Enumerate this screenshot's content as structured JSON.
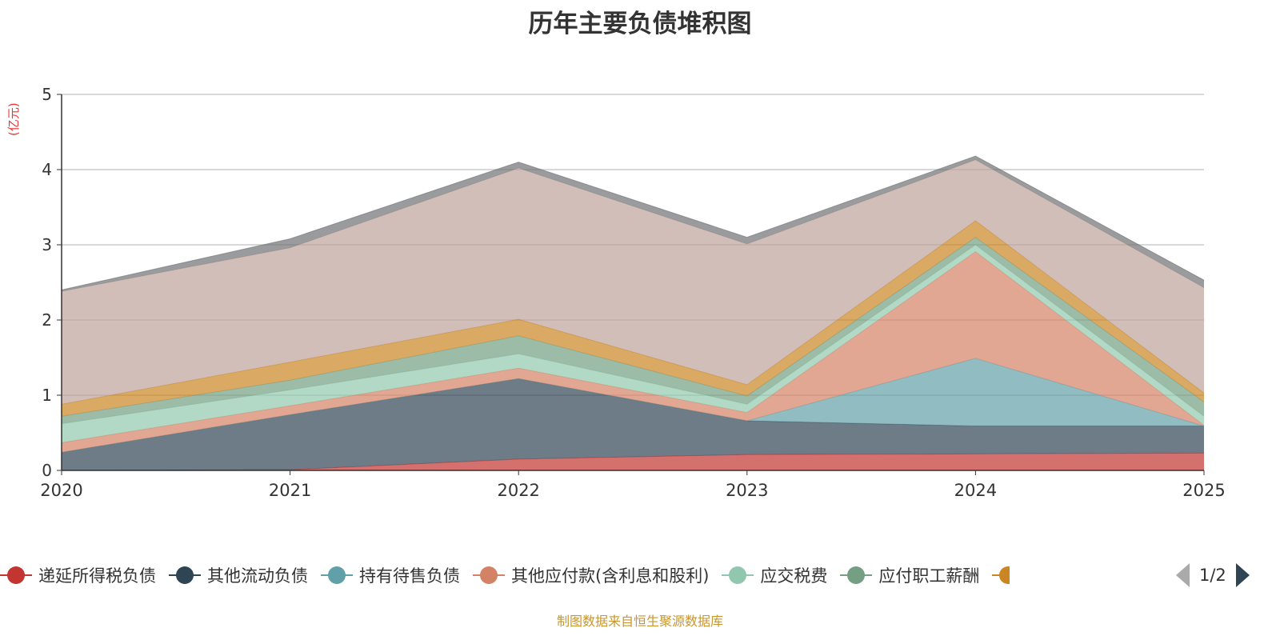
{
  "chart_data": {
    "type": "area",
    "stacked": true,
    "title": "历年主要负债堆积图",
    "ylabel": "(亿元)",
    "xlabel": "",
    "ylim": [
      0,
      5
    ],
    "yticks": [
      "0",
      "1",
      "2",
      "3",
      "4",
      "5"
    ],
    "categories": [
      "2020",
      "2021",
      "2022",
      "2023",
      "2024",
      "2025"
    ],
    "grid": true,
    "legend_position": "bottom",
    "legend_page": "1/2",
    "series": [
      {
        "name": "递延所得税负债",
        "color": "#c23531",
        "values": [
          0.0,
          0.01,
          0.15,
          0.21,
          0.22,
          0.23
        ]
      },
      {
        "name": "其他流动负债",
        "color": "#2f4554",
        "values": [
          0.24,
          0.73,
          1.07,
          0.45,
          0.37,
          0.36
        ]
      },
      {
        "name": "持有待售负债",
        "color": "#61a0a8",
        "values": [
          0,
          0,
          0,
          0,
          0.9,
          0
        ]
      },
      {
        "name": "其他应付款(含利息和股利)",
        "color": "#d48265",
        "values": [
          0.13,
          0.12,
          0.14,
          0.11,
          1.42,
          0.01
        ]
      },
      {
        "name": "应交税费",
        "color": "#91c7ae",
        "values": [
          0.25,
          0.21,
          0.19,
          0.11,
          0.09,
          0.12
        ]
      },
      {
        "name": "应付职工薪酬",
        "color": "#749f83",
        "values": [
          0.1,
          0.13,
          0.24,
          0.11,
          0.1,
          0.19
        ]
      },
      {
        "name": "",
        "color": "#ca8622",
        "values": [
          0.16,
          0.24,
          0.22,
          0.15,
          0.22,
          0.12
        ]
      },
      {
        "name": "",
        "color": "#bda29a",
        "values": [
          1.5,
          1.52,
          2.01,
          1.87,
          0.81,
          1.4
        ]
      },
      {
        "name": "",
        "color": "#6e7074",
        "values": [
          0.02,
          0.12,
          0.08,
          0.09,
          0.05,
          0.1
        ]
      }
    ]
  },
  "source": "制图数据来自恒生聚源数据库"
}
